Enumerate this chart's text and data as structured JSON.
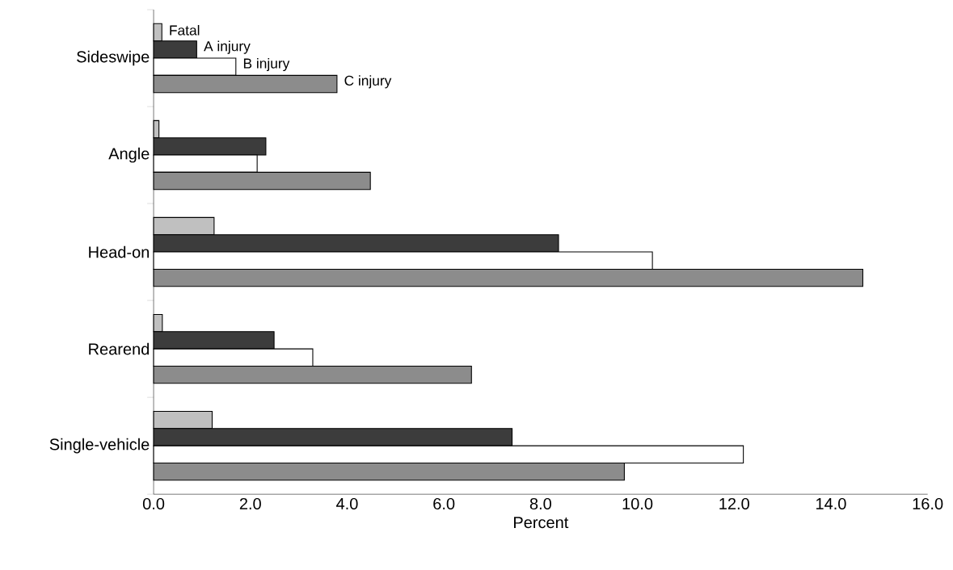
{
  "chart_data": {
    "type": "bar",
    "orientation": "horizontal",
    "xlabel": "Percent",
    "categories": [
      "Sideswipe",
      "Angle",
      "Head-on",
      "Rearend",
      "Single-vehicle"
    ],
    "series": [
      {
        "name": "Fatal",
        "color": "#c0c0c0",
        "values": [
          0.17,
          0.11,
          1.25,
          0.18,
          1.21
        ]
      },
      {
        "name": "A injury",
        "color": "#3c3c3c",
        "values": [
          0.89,
          2.32,
          8.37,
          2.49,
          7.41
        ]
      },
      {
        "name": "B injury",
        "color": "#ffffff",
        "values": [
          1.7,
          2.14,
          10.31,
          3.29,
          12.19
        ]
      },
      {
        "name": "C injury",
        "color": "#8c8c8c",
        "values": [
          3.79,
          4.48,
          14.66,
          6.57,
          9.73
        ]
      }
    ],
    "xlim": [
      0,
      16
    ],
    "xticks": [
      {
        "value": 0,
        "label": "0.0"
      },
      {
        "value": 2,
        "label": "2.0"
      },
      {
        "value": 4,
        "label": "4.0"
      },
      {
        "value": 6,
        "label": "6.0"
      },
      {
        "value": 8,
        "label": "8.0"
      },
      {
        "value": 10,
        "label": "10.0"
      },
      {
        "value": 12,
        "label": "12.0"
      },
      {
        "value": 14,
        "label": "14.0"
      },
      {
        "value": 16,
        "label": "16.0"
      }
    ],
    "grid": false,
    "legend": false
  }
}
